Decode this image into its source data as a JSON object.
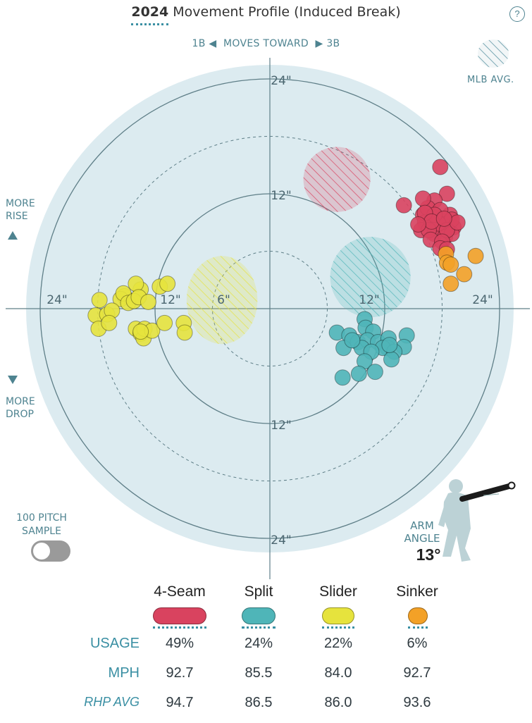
{
  "header": {
    "year": "2024",
    "title": "Movement Profile (Induced Break)",
    "help_icon": "?"
  },
  "direction": {
    "left": "1B",
    "middle": "MOVES TOWARD",
    "right": "3B"
  },
  "side_labels": {
    "rise_line1": "MORE",
    "rise_line2": "RISE",
    "drop_line1": "MORE",
    "drop_line2": "DROP"
  },
  "legend": {
    "mlb_avg": "MLB AVG."
  },
  "sample": {
    "line1": "100 PITCH",
    "line2": "SAMPLE",
    "enabled": false
  },
  "arm_angle": {
    "label_line1": "ARM",
    "label_line2": "ANGLE",
    "value": "13°"
  },
  "ring_labels": {
    "r6": "6\"",
    "r12": "12\"",
    "r24": "24\""
  },
  "chart_data": {
    "type": "scatter",
    "title": "2024 Movement Profile (Induced Break)",
    "x_unit": "inches horizontal break (negative = toward 1B, positive = toward 3B)",
    "y_unit": "inches induced vertical break",
    "rings_inches": [
      6,
      12,
      18,
      24
    ],
    "max_radius_inches": 24,
    "series": [
      {
        "name": "4-Seam",
        "color": "#d9435f",
        "mlb_avg": {
          "x": 7.0,
          "y": 13.5,
          "rx": 3.5,
          "ry": 3.4
        },
        "points": [
          [
            17.8,
            14.8
          ],
          [
            18.5,
            12.0
          ],
          [
            14.0,
            10.8
          ],
          [
            16.0,
            9.8
          ],
          [
            17.5,
            9.5
          ],
          [
            18.8,
            9.8
          ],
          [
            17.2,
            11.3
          ],
          [
            16.5,
            10.5
          ],
          [
            16.0,
            11.5
          ],
          [
            17.8,
            10.3
          ],
          [
            18.0,
            8.8
          ],
          [
            19.2,
            8.5
          ],
          [
            19.0,
            9.3
          ],
          [
            17.0,
            8.5
          ],
          [
            16.2,
            9.0
          ],
          [
            15.8,
            8.2
          ],
          [
            17.2,
            7.8
          ],
          [
            18.3,
            7.5
          ],
          [
            19.0,
            7.8
          ],
          [
            17.6,
            8.9
          ],
          [
            18.5,
            8.2
          ],
          [
            17.2,
            9.8
          ],
          [
            16.6,
            8.2
          ],
          [
            19.6,
            9.0
          ],
          [
            16.8,
            7.2
          ],
          [
            18.0,
            7.0
          ],
          [
            17.8,
            6.3
          ],
          [
            18.5,
            6.2
          ],
          [
            16.2,
            10.0
          ],
          [
            16.9,
            9.1
          ],
          [
            15.5,
            8.8
          ],
          [
            18.2,
            9.4
          ]
        ]
      },
      {
        "name": "Split",
        "color": "#4fb5b8",
        "mlb_avg": {
          "x": 10.5,
          "y": 3.3,
          "rx": 4.2,
          "ry": 4.2
        },
        "points": [
          [
            9.9,
            -1.1
          ],
          [
            10.0,
            -2.0
          ],
          [
            10.8,
            -2.4
          ],
          [
            7.0,
            -2.5
          ],
          [
            8.3,
            -2.8
          ],
          [
            9.2,
            -3.5
          ],
          [
            10.2,
            -3.3
          ],
          [
            11.3,
            -3.5
          ],
          [
            12.4,
            -3.1
          ],
          [
            14.3,
            -2.8
          ],
          [
            14.0,
            -4.0
          ],
          [
            12.3,
            -4.1
          ],
          [
            9.6,
            -4.1
          ],
          [
            11.8,
            -4.1
          ],
          [
            7.7,
            -4.1
          ],
          [
            10.6,
            -4.5
          ],
          [
            13.0,
            -4.5
          ],
          [
            8.6,
            -3.3
          ],
          [
            9.9,
            -5.5
          ],
          [
            12.7,
            -5.3
          ],
          [
            11.0,
            -6.6
          ],
          [
            9.3,
            -6.8
          ],
          [
            7.6,
            -7.2
          ],
          [
            12.5,
            -3.8
          ]
        ]
      },
      {
        "name": "Slider",
        "color": "#e6e33d",
        "mlb_avg": {
          "x": -5.0,
          "y": 0.9,
          "rx": 3.7,
          "ry": 4.6
        },
        "points": [
          [
            -15.2,
            1.3
          ],
          [
            -15.6,
            1.0
          ],
          [
            -15.3,
            1.6
          ],
          [
            -13.5,
            2.0
          ],
          [
            -14.0,
            2.6
          ],
          [
            -11.5,
            2.3
          ],
          [
            -10.7,
            2.6
          ],
          [
            -17.8,
            0.9
          ],
          [
            -18.2,
            -0.7
          ],
          [
            -17.9,
            -2.1
          ],
          [
            -17.0,
            -0.6
          ],
          [
            -16.5,
            -0.2
          ],
          [
            -14.8,
            0.6
          ],
          [
            -14.2,
            0.8
          ],
          [
            -13.7,
            1.2
          ],
          [
            -16.8,
            -1.5
          ],
          [
            -12.7,
            0.7
          ],
          [
            -14.0,
            -2.1
          ],
          [
            -13.5,
            -2.6
          ],
          [
            -13.2,
            -3.1
          ],
          [
            -13.1,
            -2.1
          ],
          [
            -12.3,
            -2.3
          ],
          [
            -11.0,
            -1.5
          ],
          [
            -9.0,
            -1.5
          ],
          [
            -8.9,
            -2.5
          ],
          [
            -13.5,
            -2.4
          ]
        ]
      },
      {
        "name": "Sinker",
        "color": "#f3a127",
        "mlb_avg": null,
        "points": [
          [
            18.4,
            5.7
          ],
          [
            21.5,
            5.5
          ],
          [
            18.5,
            4.8
          ],
          [
            18.9,
            4.6
          ],
          [
            20.3,
            3.6
          ],
          [
            18.9,
            2.6
          ]
        ]
      }
    ]
  },
  "stats": {
    "row_labels": [
      "USAGE",
      "MPH",
      "RHP AVG"
    ],
    "pitches": [
      {
        "name": "4-Seam",
        "usage": "49%",
        "mph": "92.7",
        "rhp_avg": "94.7"
      },
      {
        "name": "Split",
        "usage": "24%",
        "mph": "85.5",
        "rhp_avg": "86.5"
      },
      {
        "name": "Slider",
        "usage": "22%",
        "mph": "84.0",
        "rhp_avg": "86.0"
      },
      {
        "name": "Sinker",
        "usage": "6%",
        "mph": "92.7",
        "rhp_avg": "93.6"
      }
    ]
  }
}
